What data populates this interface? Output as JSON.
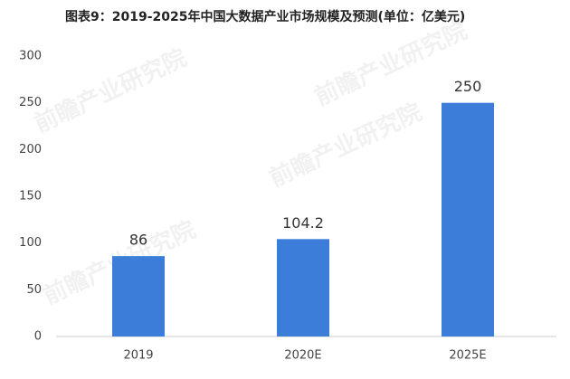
{
  "chart_data": {
    "type": "bar",
    "title": "图表9：2019-2025年中国大数据产业市场规模及预测(单位：亿美元)",
    "watermark": "前瞻产业研究院",
    "categories": [
      "2019",
      "2020E",
      "2025E"
    ],
    "values": [
      86,
      104.2,
      250
    ],
    "color": "#3b7dd8",
    "ylim": [
      0,
      300
    ],
    "yticks": [
      0,
      50,
      100,
      150,
      200,
      250,
      300
    ],
    "grid": false
  }
}
